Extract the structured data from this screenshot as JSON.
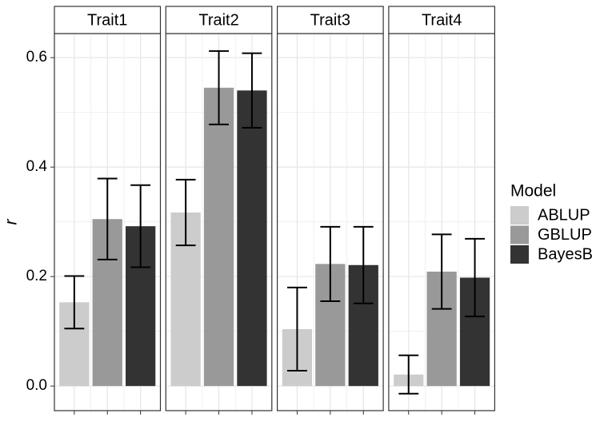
{
  "chart_data": {
    "type": "bar",
    "facets": [
      "Trait1",
      "Trait2",
      "Trait3",
      "Trait4"
    ],
    "ylabel": "r",
    "legend_title": "Model",
    "series": [
      {
        "name": "ABLUP",
        "color": "#cccccc",
        "values": [
          0.153,
          0.317,
          0.104,
          0.021
        ],
        "errors": [
          0.048,
          0.06,
          0.076,
          0.035
        ]
      },
      {
        "name": "GBLUP",
        "color": "#999999",
        "values": [
          0.305,
          0.545,
          0.223,
          0.209
        ],
        "errors": [
          0.074,
          0.067,
          0.068,
          0.068
        ]
      },
      {
        "name": "BayesB",
        "color": "#333333",
        "values": [
          0.292,
          0.54,
          0.221,
          0.198
        ],
        "errors": [
          0.075,
          0.068,
          0.07,
          0.071
        ]
      }
    ],
    "ylim": [
      -0.045,
      0.644
    ],
    "yticks": [
      {
        "value": 0,
        "label": "0.0"
      },
      0.2,
      0.4,
      0.6
    ],
    "minor_yticks": [
      0.1,
      0.3,
      0.5
    ],
    "grid": true,
    "legend_position": "right"
  }
}
